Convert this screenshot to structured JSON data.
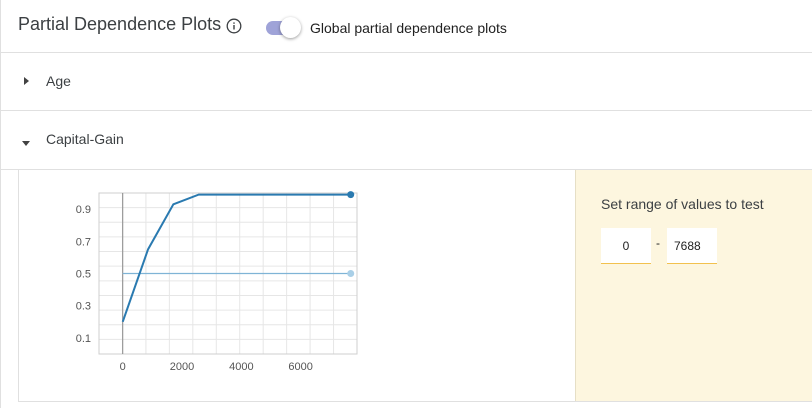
{
  "header": {
    "title": "Partial Dependence Plots",
    "toggle_label": "Global partial dependence plots",
    "toggle_on": true
  },
  "sections": [
    {
      "label": "Age",
      "expanded": false
    },
    {
      "label": "Capital-Gain",
      "expanded": true
    }
  ],
  "range_panel": {
    "title": "Set range of values to test",
    "min_value": "0",
    "dash": "-",
    "max_value": "7688"
  },
  "colors": {
    "line": "#2a7ab0",
    "baseline": "#7fb4d6",
    "panel_bg": "#fdf6df",
    "toggle_track": "#9fa3d8"
  },
  "chart_data": {
    "type": "line",
    "x": [
      0,
      854,
      1708,
      2563,
      3417,
      4271,
      5125,
      5980,
      6834,
      7688
    ],
    "y": [
      0.2,
      0.65,
      0.93,
      0.99,
      0.99,
      0.99,
      0.99,
      0.99,
      0.99,
      0.99
    ],
    "baseline": 0.5,
    "xticks": [
      0,
      2000,
      4000,
      6000
    ],
    "yticks": [
      0.1,
      0.3,
      0.5,
      0.7,
      0.9
    ],
    "xlim": [
      -800,
      7900
    ],
    "ylim": [
      0,
      1.0
    ],
    "grid": true
  }
}
